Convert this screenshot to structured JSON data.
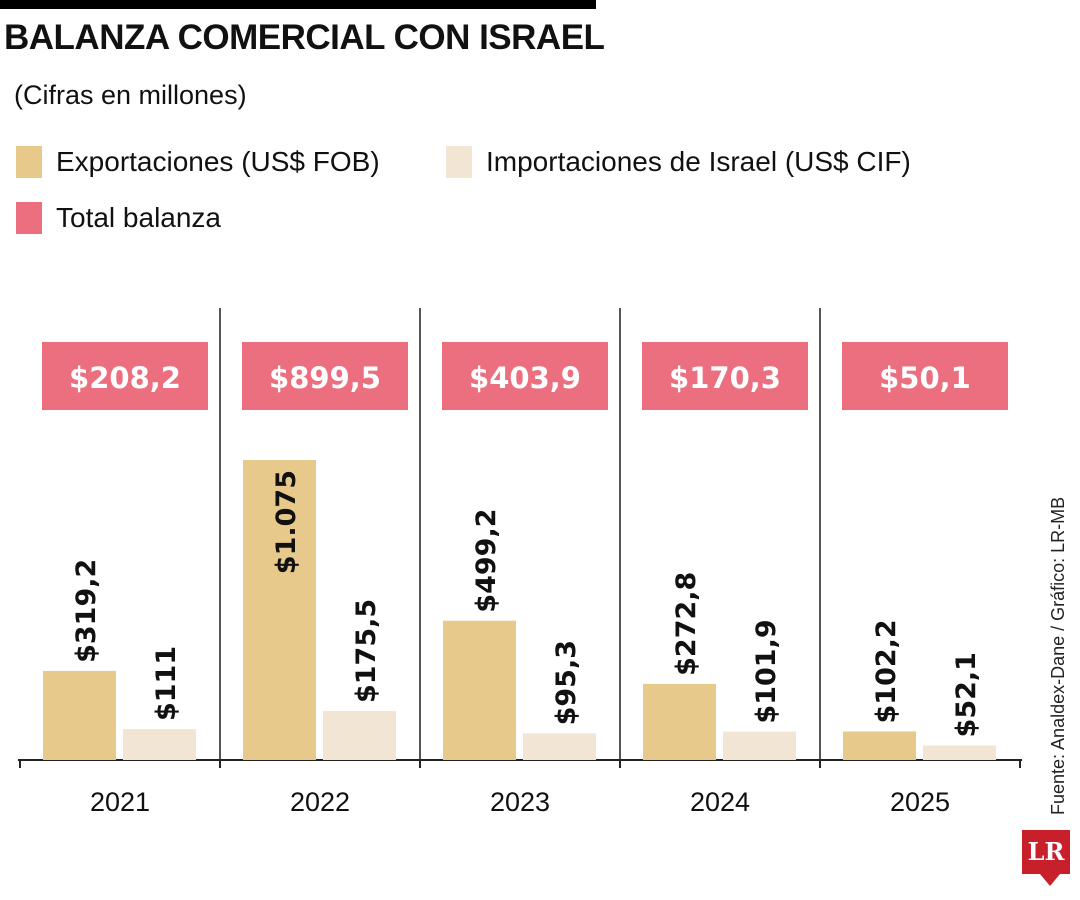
{
  "chart_data": {
    "type": "bar",
    "title": "BALANZA COMERCIAL CON ISRAEL",
    "subtitle": "(Cifras en millones)",
    "categories": [
      "2021",
      "2022",
      "2023",
      "2024",
      "2025"
    ],
    "series": [
      {
        "name": "Exportaciones (US$ FOB)",
        "values": [
          319.2,
          1075,
          499.2,
          272.8,
          102.2
        ],
        "labels": [
          "$319,2",
          "$1.075",
          "$499,2",
          "$272,8",
          "$102,2"
        ],
        "color": "#e8c98c"
      },
      {
        "name": "Importaciones de Israel (US$ CIF)",
        "values": [
          111,
          175.5,
          95.3,
          101.9,
          52.1
        ],
        "labels": [
          "$111",
          "$175,5",
          "$95,3",
          "$101,9",
          "$52,1"
        ],
        "color": "#f3e5d3"
      },
      {
        "name": "Total balanza",
        "values": [
          208.2,
          899.5,
          403.9,
          170.3,
          50.1
        ],
        "labels": [
          "$208,2",
          "$899,5",
          "$403,9",
          "$170,3",
          "$50,1"
        ],
        "color": "#ec6f7f"
      }
    ],
    "ylim": [
      0,
      1075
    ],
    "grid": false,
    "legend": "top-left",
    "source": "Fuente: Analdex-Dane / Gráfico: LR-MB",
    "logo": "LR"
  }
}
